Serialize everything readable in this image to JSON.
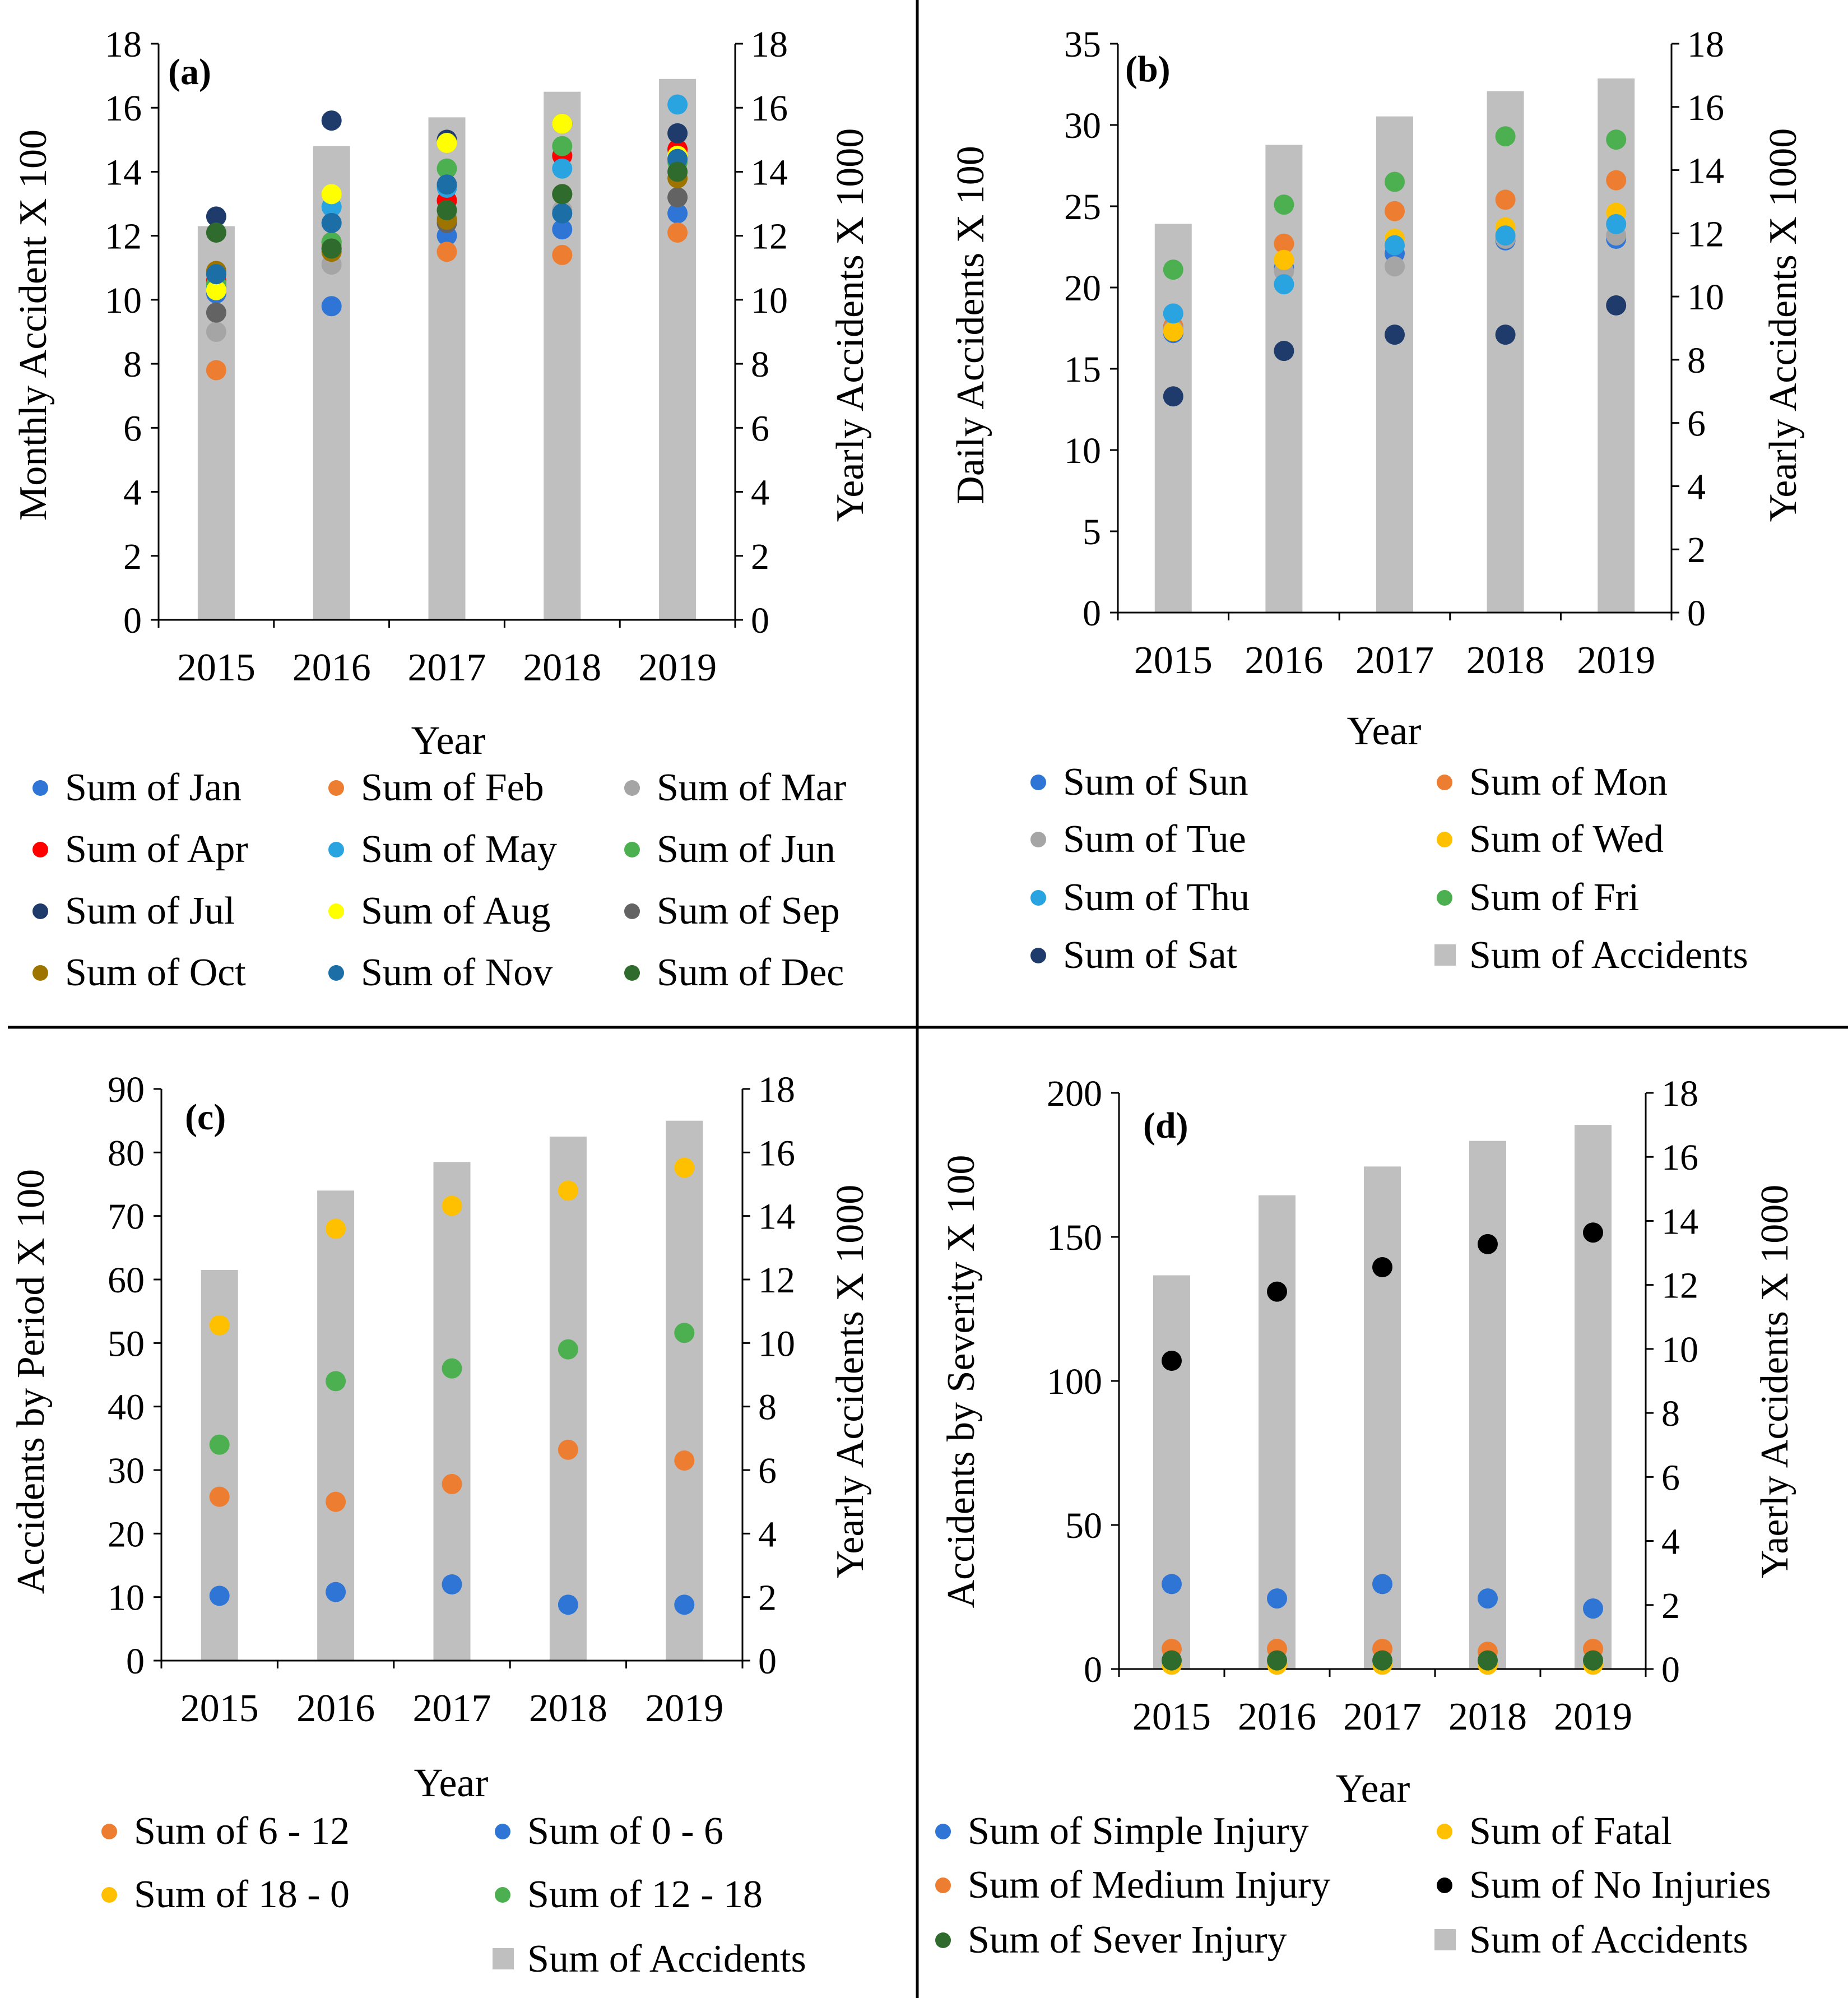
{
  "chart_data": [
    {
      "panel_label": "(a)",
      "type": "bar+scatter",
      "xlabel": "Year",
      "ylabel": "Monthly  Accident X 100",
      "y2label": "Yearly Accidents X 1000",
      "ylim": [
        0,
        18
      ],
      "ytick_step": 2,
      "y2lim": [
        0,
        18
      ],
      "y2tick_step": 2,
      "categories": [
        "2015",
        "2016",
        "2017",
        "2018",
        "2019"
      ],
      "bar_series": {
        "name": "Sum of Accidents",
        "values": [
          12.3,
          14.8,
          15.7,
          16.5,
          16.9
        ]
      },
      "series": [
        {
          "name": "Sum of Jan",
          "color": "#2e75d6",
          "values": [
            10.2,
            9.8,
            12.0,
            12.2,
            12.7
          ]
        },
        {
          "name": "Sum of Feb",
          "color": "#ed7d31",
          "values": [
            7.8,
            11.7,
            11.5,
            11.4,
            12.1
          ]
        },
        {
          "name": "Sum of Mar",
          "color": "#a5a5a5",
          "values": [
            9.0,
            11.1,
            12.6,
            12.8,
            13.2
          ]
        },
        {
          "name": "Sum of Apr",
          "color": "#ff0000",
          "values": [
            10.6,
            11.8,
            13.1,
            14.5,
            14.7
          ]
        },
        {
          "name": "Sum of May",
          "color": "#2aa4e0",
          "values": [
            10.4,
            12.9,
            13.5,
            14.1,
            16.1
          ]
        },
        {
          "name": "Sum of Jun",
          "color": "#4caf50",
          "values": [
            10.5,
            11.8,
            14.1,
            14.8,
            14.3
          ]
        },
        {
          "name": "Sum of Jul",
          "color": "#1f3b6b",
          "values": [
            12.6,
            15.6,
            15.0,
            15.5,
            15.2
          ]
        },
        {
          "name": "Sum of Aug",
          "color": "#ffff00",
          "values": [
            10.3,
            13.3,
            14.9,
            15.5,
            14.5
          ]
        },
        {
          "name": "Sum of Sep",
          "color": "#636363",
          "values": [
            9.6,
            11.6,
            12.4,
            13.3,
            13.2
          ]
        },
        {
          "name": "Sum of Oct",
          "color": "#9e7400",
          "values": [
            10.9,
            11.5,
            12.5,
            13.3,
            13.8
          ]
        },
        {
          "name": "Sum of Nov",
          "color": "#1b6fa6",
          "values": [
            10.8,
            12.4,
            13.6,
            12.7,
            14.4
          ]
        },
        {
          "name": "Sum of Dec",
          "color": "#2f6b2c",
          "values": [
            12.1,
            11.6,
            12.8,
            13.3,
            14.0
          ]
        }
      ],
      "legend": [
        [
          "Sum of Jan",
          "Sum of Feb",
          "Sum of Mar"
        ],
        [
          "Sum of Apr",
          "Sum of May",
          "Sum of Jun"
        ],
        [
          "Sum of Jul",
          "Sum of Aug",
          "Sum of Sep"
        ],
        [
          "Sum of Oct",
          "Sum of Nov",
          "Sum of Dec"
        ]
      ],
      "legend_placement": "bottom"
    },
    {
      "panel_label": "(b)",
      "type": "bar+scatter",
      "xlabel": "Year",
      "ylabel": "Daily Accidents X 100",
      "y2label": "Yearly Accidents X 1000",
      "ylim": [
        0,
        35
      ],
      "ytick_step": 5,
      "y2lim": [
        0,
        18
      ],
      "y2tick_step": 2,
      "categories": [
        "2015",
        "2016",
        "2017",
        "2018",
        "2019"
      ],
      "bar_series": {
        "name": "Sum of Accidents",
        "values": [
          12.3,
          14.8,
          15.7,
          16.5,
          16.9
        ]
      },
      "series": [
        {
          "name": "Sum of Sun",
          "color": "#2e75d6",
          "values": [
            17.2,
            21.2,
            22.1,
            22.9,
            23.0
          ]
        },
        {
          "name": "Sum of Mon",
          "color": "#ed7d31",
          "values": [
            17.6,
            22.7,
            24.7,
            25.4,
            26.6
          ]
        },
        {
          "name": "Sum of Tue",
          "color": "#a5a5a5",
          "values": [
            17.4,
            21.0,
            21.3,
            23.0,
            23.2
          ]
        },
        {
          "name": "Sum of Wed",
          "color": "#ffc000",
          "values": [
            17.3,
            21.7,
            23.0,
            23.7,
            24.6
          ]
        },
        {
          "name": "Sum of Thu",
          "color": "#2aa4e0",
          "values": [
            18.4,
            20.2,
            22.6,
            23.2,
            23.9
          ]
        },
        {
          "name": "Sum of Fri",
          "color": "#4caf50",
          "values": [
            21.1,
            25.1,
            26.5,
            29.3,
            29.1
          ]
        },
        {
          "name": "Sum of Sat",
          "color": "#1f3b6b",
          "values": [
            13.3,
            16.1,
            17.1,
            17.1,
            18.9
          ]
        }
      ],
      "legend": [
        [
          "Sum of Sun",
          "Sum of Mon"
        ],
        [
          "Sum of Tue",
          "Sum of Wed"
        ],
        [
          "Sum of Thu",
          "Sum of Fri"
        ],
        [
          "Sum of Sat",
          "Sum of Accidents"
        ]
      ],
      "legend_placement": "bottom"
    },
    {
      "panel_label": "(c)",
      "type": "bar+scatter",
      "xlabel": "Year",
      "ylabel": "Accidents by Period X 100",
      "y2label": "Yearly Accidents X 1000",
      "ylim": [
        0,
        90
      ],
      "ytick_step": 10,
      "y2lim": [
        0,
        18
      ],
      "y2tick_step": 2,
      "categories": [
        "2015",
        "2016",
        "2017",
        "2018",
        "2019"
      ],
      "bar_series": {
        "name": "Sum of Accidents",
        "values": [
          12.3,
          14.8,
          15.7,
          16.5,
          17.0
        ]
      },
      "series": [
        {
          "name": "Sum of 6 - 12",
          "color": "#ed7d31",
          "values": [
            25.8,
            25.0,
            27.8,
            33.2,
            31.5
          ]
        },
        {
          "name": "Sum of 0  -  6",
          "color": "#2e75d6",
          "values": [
            10.2,
            10.8,
            12.0,
            8.8,
            8.8
          ]
        },
        {
          "name": "Sum of 18 -  0",
          "color": "#ffc000",
          "values": [
            52.8,
            68.0,
            71.6,
            74.0,
            77.6
          ]
        },
        {
          "name": "Sum of 12 - 18",
          "color": "#4caf50",
          "values": [
            34.0,
            44.0,
            46.0,
            49.0,
            51.6
          ]
        }
      ],
      "legend": [
        [
          "Sum of 6 - 12",
          "Sum of 0  -  6"
        ],
        [
          "Sum of 18 -  0",
          "Sum of 12 - 18"
        ],
        [
          "",
          "Sum of Accidents"
        ]
      ],
      "legend_placement": "bottom"
    },
    {
      "panel_label": "(d)",
      "type": "bar+scatter",
      "xlabel": "Year",
      "ylabel": "Accidents by Severity X 100",
      "y2label": "Yaerly Accidents X 1000",
      "ylim": [
        0,
        200
      ],
      "ytick_step": 50,
      "y2lim": [
        0,
        18
      ],
      "y2tick_step": 2,
      "categories": [
        "2015",
        "2016",
        "2017",
        "2018",
        "2019"
      ],
      "bar_series": {
        "name": "Sum of Accidents",
        "values": [
          12.3,
          14.8,
          15.7,
          16.5,
          17.0
        ]
      },
      "series": [
        {
          "name": "Sum of Simple Injury",
          "color": "#2e75d6",
          "values": [
            29.5,
            24.5,
            29.5,
            24.5,
            21.0
          ]
        },
        {
          "name": "Sum of Fatal",
          "color": "#ffc000",
          "values": [
            1.5,
            1.5,
            1.5,
            1.5,
            1.5
          ]
        },
        {
          "name": "Sum of Medium Injury",
          "color": "#ed7d31",
          "values": [
            7.0,
            7.0,
            7.0,
            6.0,
            7.0
          ]
        },
        {
          "name": "Sum of No Injuries",
          "color": "#000000",
          "values": [
            107.0,
            131.0,
            139.5,
            147.5,
            151.5
          ]
        },
        {
          "name": "Sum of Sever Injury",
          "color": "#2f6b2c",
          "values": [
            3.0,
            3.0,
            3.0,
            3.0,
            3.0
          ]
        }
      ],
      "legend": [
        [
          "Sum of Simple Injury",
          "Sum of Fatal"
        ],
        [
          "Sum of Medium Injury",
          "Sum of No Injuries"
        ],
        [
          "Sum of Sever Injury",
          "Sum of Accidents"
        ]
      ],
      "legend_placement": "bottom"
    }
  ]
}
